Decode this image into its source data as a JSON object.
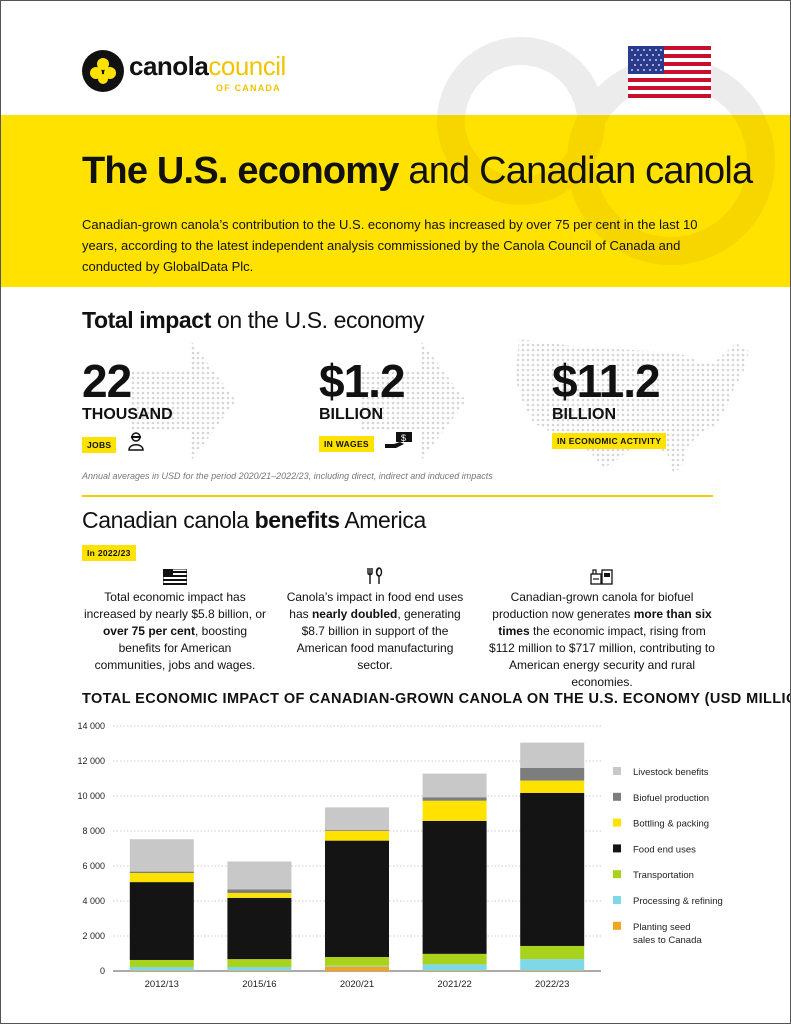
{
  "header": {
    "logo_word_1": "canola",
    "logo_word_2": "council",
    "logo_sub": "OF CANADA",
    "title_bold": "The U.S. economy",
    "title_rest": " and Canadian canola",
    "intro": "Canadian-grown canola’s contribution to the U.S. economy has increased by over 75 per cent in the last 10 years, according to the latest independent analysis commissioned by the Canola Council of Canada and conducted by GlobalData Plc."
  },
  "impact": {
    "heading_bold": "Total impact",
    "heading_rest": " on the U.S. economy",
    "stats": [
      {
        "number": "22",
        "unit": "THOUSAND",
        "tag": "JOBS",
        "icon": "worker-icon"
      },
      {
        "number": "$1.2",
        "unit": "BILLION",
        "tag": "IN WAGES",
        "icon": "hand-money-icon"
      },
      {
        "number": "$11.2",
        "unit": "BILLION",
        "tag": "IN ECONOMIC ACTIVITY",
        "icon": "us-map-icon"
      }
    ],
    "footnote": "Annual averages in USD for the period 2020/21–2022/23, including direct, indirect and induced impacts"
  },
  "benefits": {
    "heading_normal": "Canadian canola ",
    "heading_bold": "benefits",
    "heading_rest": " America",
    "year_tag": "In 2022/23",
    "items": [
      {
        "icon": "flag-icon",
        "p1": "Total economic impact has increased by nearly $5.8 billion, or ",
        "bold": "over 75 per cent",
        "p2": ", boosting benefits for American communities, jobs and wages."
      },
      {
        "icon": "utensils-icon",
        "p1": "Canola’s impact in food end uses has ",
        "bold": "nearly doubled",
        "p2": ", generating $8.7 billion in support of the American food manufacturing sector."
      },
      {
        "icon": "fuel-plant-icon",
        "p1": "Canadian-grown canola for biofuel production now generates ",
        "bold": "more than six times",
        "p2": " the economic impact, rising from $112 million to $717 million, contributing to American energy security and rural economies."
      }
    ]
  },
  "colors": {
    "yellow": "#ffe200",
    "livestock": "#c8c8c8",
    "biofuel": "#7d7d7d",
    "bottling": "#ffe200",
    "food": "#141414",
    "transport": "#a8d21c",
    "processing": "#7fd8e8",
    "seed": "#f2a51e"
  },
  "chart_data": {
    "type": "bar",
    "stacked": true,
    "title": "TOTAL ECONOMIC IMPACT OF CANADIAN-GROWN CANOLA ON THE U.S. ECONOMY (USD MILLIONS)",
    "categories": [
      "2012/13",
      "2015/16",
      "2020/21",
      "2021/22",
      "2022/23"
    ],
    "ylim": [
      0,
      14000
    ],
    "yticks": [
      "0",
      "2 000",
      "4 000",
      "6 000",
      "8 000",
      "10 000",
      "12 000",
      "14 000"
    ],
    "ytick_values": [
      0,
      2000,
      4000,
      6000,
      8000,
      10000,
      12000,
      14000
    ],
    "series": [
      {
        "name": "Planting seed sales to Canada",
        "color": "#f2a51e",
        "values": [
          30,
          30,
          250,
          30,
          30
        ]
      },
      {
        "name": "Processing & refining",
        "color": "#7fd8e8",
        "values": [
          200,
          200,
          50,
          350,
          650
        ]
      },
      {
        "name": "Transportation",
        "color": "#a8d21c",
        "values": [
          400,
          450,
          500,
          600,
          750
        ]
      },
      {
        "name": "Food end uses",
        "color": "#141414",
        "values": [
          4450,
          3500,
          6650,
          7600,
          8750
        ]
      },
      {
        "name": "Bottling & packing",
        "color": "#ffe200",
        "values": [
          520,
          280,
          550,
          1150,
          700
        ]
      },
      {
        "name": "Biofuel production",
        "color": "#7d7d7d",
        "values": [
          80,
          200,
          50,
          200,
          720
        ]
      },
      {
        "name": "Livestock benefits",
        "color": "#c8c8c8",
        "values": [
          1850,
          1600,
          1300,
          1350,
          1450
        ]
      }
    ],
    "legend_order": [
      {
        "line1": "Livestock benefits",
        "line2": ""
      },
      {
        "line1": "Biofuel production",
        "line2": ""
      },
      {
        "line1": "Bottling & packing",
        "line2": ""
      },
      {
        "line1": "Food end uses",
        "line2": ""
      },
      {
        "line1": "Transportation",
        "line2": ""
      },
      {
        "line1": "Processing & refining",
        "line2": ""
      },
      {
        "line1": "Planting seed",
        "line2": "sales to Canada"
      }
    ]
  }
}
